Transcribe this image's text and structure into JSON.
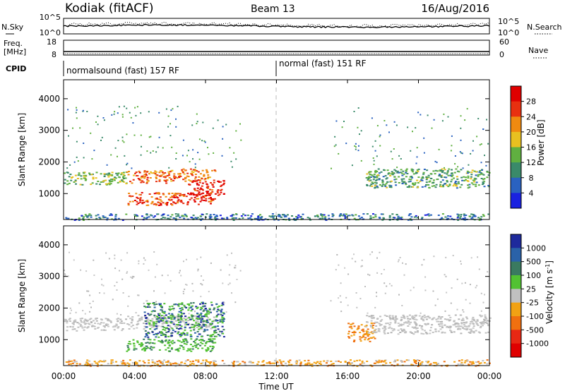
{
  "header": {
    "station": "Kodiak (fitACF)",
    "beam": "Beam 13",
    "date": "16/Aug/2016"
  },
  "top_panels": {
    "nsky": {
      "label": "N.Sky",
      "right_label": "N.Search",
      "left_ticks": [
        "10^5",
        "10^0"
      ],
      "right_ticks": [
        "10^5",
        "10^0"
      ],
      "line_color": "#000000"
    },
    "freq": {
      "label_line1": "Freq.",
      "label_line2": "[MHz]",
      "right_label": "Nave",
      "left_ticks": [
        "18",
        "8"
      ],
      "right_ticks": [
        "60",
        "0"
      ]
    },
    "cpid": {
      "label": "CPID",
      "segments": [
        {
          "name": "normalsound (fast) 157 RF",
          "start_hour": 0,
          "end_hour": 12
        },
        {
          "name": "normal (fast) 151 RF",
          "start_hour": 12,
          "end_hour": 24
        }
      ]
    }
  },
  "time_axis": {
    "label": "Time UT",
    "ticks": [
      "00:00",
      "04:00",
      "08:00",
      "12:00",
      "16:00",
      "20:00",
      "00:00"
    ]
  },
  "chart_data": [
    {
      "type": "heatmap",
      "name": "power",
      "title": "",
      "xlabel": "Time UT",
      "ylabel": "Slant Range [km]",
      "xlim": [
        0,
        24
      ],
      "ylim": [
        180,
        4600
      ],
      "yticks": [
        1000,
        2000,
        3000,
        4000
      ],
      "grid": false,
      "colorbar": {
        "label": "Power [dB]",
        "ticks": [
          4,
          8,
          12,
          16,
          20,
          24,
          28
        ],
        "range": [
          0,
          32
        ],
        "colors": [
          "#1a22e0",
          "#2a62c0",
          "#3a8a6a",
          "#60b040",
          "#e8c020",
          "#f08a10",
          "#e83010",
          "#e00000"
        ]
      },
      "features": [
        {
          "start_hour": 0.0,
          "end_hour": 3.5,
          "range_km": [
            1300,
            1700
          ],
          "value": 12
        },
        {
          "start_hour": 3.5,
          "end_hour": 6.5,
          "range_km": [
            1350,
            1750
          ],
          "value": 22
        },
        {
          "start_hour": 6.5,
          "end_hour": 8.5,
          "range_km": [
            1400,
            1800
          ],
          "value": 20
        },
        {
          "start_hour": 3.5,
          "end_hour": 8.5,
          "range_km": [
            650,
            1050
          ],
          "value": 24
        },
        {
          "start_hour": 7.0,
          "end_hour": 9.0,
          "range_km": [
            950,
            1450
          ],
          "value": 26
        },
        {
          "start_hour": 17.0,
          "end_hour": 24.0,
          "range_km": [
            1200,
            1800
          ],
          "value": 10
        },
        {
          "start_hour": 0.0,
          "end_hour": 24.0,
          "range_km": [
            180,
            380
          ],
          "value": 6
        }
      ]
    },
    {
      "type": "heatmap",
      "name": "velocity",
      "title": "",
      "xlabel": "Time UT",
      "ylabel": "Slant Range [km]",
      "xlim": [
        0,
        24
      ],
      "ylim": [
        180,
        4600
      ],
      "yticks": [
        1000,
        2000,
        3000,
        4000
      ],
      "grid": false,
      "colorbar": {
        "label": "Velocity [m s^-1]",
        "ticks": [
          "1000",
          "500",
          "100",
          "25",
          "-25",
          "-100",
          "-500",
          "-1000"
        ],
        "colors": [
          "#1e2a9c",
          "#2a62a8",
          "#3a7a60",
          "#52c232",
          "#c0c0c0",
          "#f2a214",
          "#f07010",
          "#e82814",
          "#e00000"
        ]
      },
      "features": [
        {
          "start_hour": 0.0,
          "end_hour": 3.5,
          "range_km": [
            1300,
            1700
          ],
          "value": "25 to -25"
        },
        {
          "start_hour": 3.5,
          "end_hour": 8.5,
          "range_km": [
            1350,
            1800
          ],
          "value": "25 to -25"
        },
        {
          "start_hour": 4.5,
          "end_hour": 9.0,
          "range_km": [
            1100,
            2200
          ],
          "value": "100 to 1000"
        },
        {
          "start_hour": 3.5,
          "end_hour": 8.5,
          "range_km": [
            650,
            1050
          ],
          "value": "100 to 500"
        },
        {
          "start_hour": 16.0,
          "end_hour": 17.5,
          "range_km": [
            950,
            1550
          ],
          "value": "-100 to -500"
        },
        {
          "start_hour": 17.0,
          "end_hour": 24.0,
          "range_km": [
            1200,
            1800
          ],
          "value": "25 to -25"
        },
        {
          "start_hour": 0.0,
          "end_hour": 24.0,
          "range_km": [
            180,
            380
          ],
          "value": "-25 to -100"
        }
      ]
    }
  ]
}
